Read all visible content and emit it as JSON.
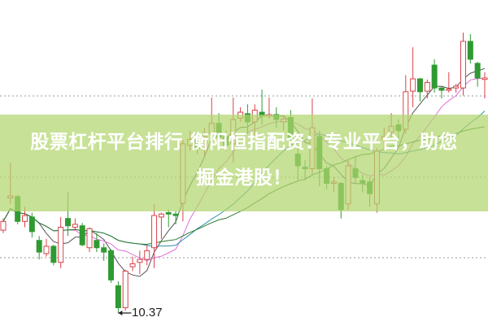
{
  "headline": {
    "line1": "股票杠杆平台排行 衡阳恒指配资：专业平台，助您",
    "line2": "掘金港股！"
  },
  "chart_data": {
    "type": "candlestick",
    "title": "",
    "xlabel": "",
    "ylabel": "",
    "ylim": [
      10.0,
      20.2
    ],
    "grid": "dotted horizontal",
    "annotations": [
      {
        "text": "10.37",
        "label": "low marker"
      }
    ],
    "colors": {
      "up": "#d9434a",
      "down": "#2f9a32",
      "ma5": "#555555",
      "ma10": "#e070d8",
      "ma20": "#2a8fa8",
      "ma30": "#2d7a2d",
      "banner": "#b2d66e"
    },
    "moving_averages": [
      5,
      10,
      20,
      30
    ],
    "candles": [
      [
        13.2,
        13.6,
        13.1,
        13.5
      ],
      [
        14.3,
        15.5,
        14.1,
        14.37
      ],
      [
        14.35,
        14.4,
        13.4,
        13.5
      ],
      [
        13.5,
        14.0,
        13.3,
        13.7
      ],
      [
        13.65,
        13.8,
        12.95,
        13.15
      ],
      [
        12.85,
        13.0,
        12.2,
        12.45
      ],
      [
        12.4,
        12.9,
        12.3,
        12.65
      ],
      [
        12.65,
        12.7,
        12.0,
        12.1
      ],
      [
        12.1,
        13.65,
        11.9,
        13.3
      ],
      [
        13.6,
        14.5,
        13.0,
        13.35
      ],
      [
        13.3,
        13.6,
        13.2,
        13.4
      ],
      [
        13.35,
        13.45,
        12.65,
        12.7
      ],
      [
        12.6,
        13.3,
        12.45,
        13.25
      ],
      [
        12.85,
        13.1,
        12.45,
        12.6
      ],
      [
        12.6,
        12.75,
        12.15,
        12.45
      ],
      [
        12.5,
        12.55,
        11.4,
        11.5
      ],
      [
        11.3,
        11.45,
        10.37,
        10.55
      ],
      [
        10.55,
        11.85,
        10.45,
        11.8
      ],
      [
        11.95,
        12.3,
        11.8,
        12.05
      ],
      [
        12.1,
        12.5,
        11.7,
        12.2
      ],
      [
        12.2,
        12.7,
        12.0,
        12.5
      ],
      [
        12.6,
        14.1,
        11.9,
        13.7
      ],
      [
        13.65,
        13.8,
        12.9,
        13.75
      ],
      [
        13.8,
        13.9,
        13.3,
        13.75
      ],
      [
        13.75,
        13.85,
        13.4,
        13.7
      ],
      [
        14.12,
        16.3,
        13.5,
        16.15
      ],
      [
        16.1,
        16.6,
        15.9,
        16.3
      ],
      [
        16.3,
        16.5,
        15.8,
        16.0
      ],
      [
        16.0,
        16.7,
        15.7,
        16.4
      ],
      [
        16.5,
        17.73,
        16.3,
        16.85
      ],
      [
        16.85,
        17.2,
        16.2,
        16.4
      ],
      [
        16.4,
        16.6,
        15.9,
        16.1
      ],
      [
        16.15,
        17.73,
        15.5,
        16.98
      ],
      [
        17.03,
        17.4,
        16.9,
        17.23
      ],
      [
        17.18,
        17.5,
        16.5,
        16.9
      ],
      [
        16.9,
        17.5,
        16.4,
        17.3
      ],
      [
        17.23,
        18.0,
        16.8,
        17.1
      ],
      [
        17.1,
        17.73,
        17.0,
        17.15
      ],
      [
        17.15,
        17.4,
        16.7,
        16.98
      ],
      [
        16.9,
        17.1,
        16.6,
        17.0
      ],
      [
        17.05,
        17.3,
        16.2,
        16.3
      ],
      [
        15.8,
        16.1,
        14.9,
        15.4
      ],
      [
        15.35,
        15.6,
        14.9,
        15.3
      ],
      [
        15.3,
        17.7,
        15.1,
        16.7
      ],
      [
        16.4,
        16.6,
        14.7,
        15.3
      ],
      [
        15.3,
        15.4,
        14.6,
        14.8
      ],
      [
        14.8,
        15.0,
        14.5,
        14.85
      ],
      [
        14.8,
        14.85,
        13.6,
        13.9
      ],
      [
        14.1,
        15.6,
        13.9,
        15.4
      ],
      [
        15.3,
        15.7,
        14.8,
        15.0
      ],
      [
        14.9,
        15.1,
        14.5,
        14.8
      ],
      [
        14.85,
        15.0,
        14.0,
        14.45
      ],
      [
        14.1,
        16.0,
        13.8,
        15.9
      ],
      [
        16.3,
        16.7,
        16.0,
        16.4
      ],
      [
        16.55,
        17.2,
        16.3,
        16.75
      ],
      [
        16.8,
        17.0,
        16.2,
        16.6
      ],
      [
        16.65,
        18.5,
        16.5,
        17.93
      ],
      [
        17.95,
        19.45,
        17.4,
        18.37
      ],
      [
        18.37,
        18.4,
        17.6,
        17.93
      ],
      [
        17.95,
        18.35,
        17.7,
        18.25
      ],
      [
        18.84,
        19.04,
        17.9,
        18.06
      ],
      [
        18.06,
        18.1,
        17.7,
        17.98
      ],
      [
        18.0,
        18.6,
        17.9,
        18.02
      ],
      [
        18.06,
        18.2,
        17.9,
        18.12
      ],
      [
        18.06,
        19.95,
        17.8,
        19.65
      ],
      [
        19.65,
        19.9,
        18.9,
        19.04
      ],
      [
        18.9,
        18.95,
        18.1,
        18.4
      ],
      [
        18.35,
        18.6,
        17.7,
        18.4
      ]
    ]
  }
}
